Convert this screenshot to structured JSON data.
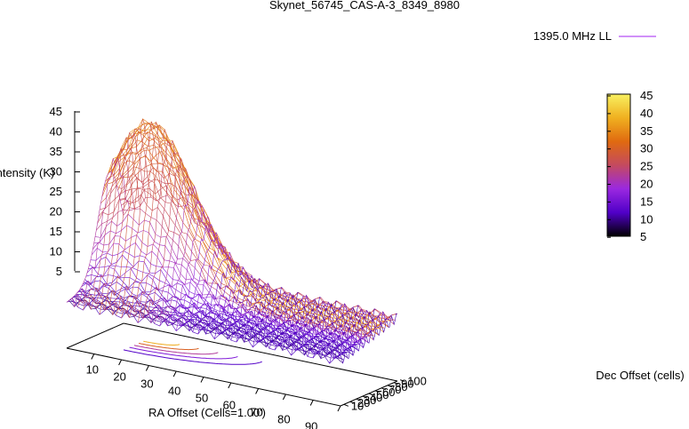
{
  "chart_data": {
    "type": "surface3d",
    "title": "Skynet_56745_CAS-A-3_8349_8980",
    "legend": {
      "label": "1395.0 MHz LL",
      "placement": "top-right"
    },
    "zlabel": "Intensity (K)",
    "xlabel": "RA Offset (Cells=1.00')",
    "ylabel": "Dec Offset (cells)",
    "xlim": [
      0,
      100
    ],
    "ylim": [
      0,
      100
    ],
    "zlim": [
      0,
      45
    ],
    "x_ticks": [
      "10",
      "20",
      "30",
      "40",
      "50",
      "60",
      "70",
      "80",
      "90",
      "100"
    ],
    "y_ticks": [
      "10",
      "20",
      "30",
      "40",
      "50",
      "60",
      "70",
      "80",
      "90",
      "100"
    ],
    "z_ticks": [
      "45",
      "40",
      "35",
      "30",
      "25",
      "20",
      "15",
      "10",
      "5"
    ],
    "colorbar": {
      "range": [
        5,
        45
      ],
      "ticks": [
        "45",
        "40",
        "35",
        "30",
        "25",
        "20",
        "15",
        "10",
        "5"
      ],
      "palette": [
        "#000000",
        "#5000c8",
        "#9a28e0",
        "#c44a60",
        "#e06a10",
        "#f0b020",
        "#f8f060"
      ]
    },
    "surface": {
      "description_free": true,
      "peak": {
        "x": 15,
        "y": 75,
        "z": 44
      },
      "baseline_z": 10,
      "edge_z_at_x0_y0": 15,
      "far_corner_z": 18
    },
    "projection": "contour on base plane"
  }
}
